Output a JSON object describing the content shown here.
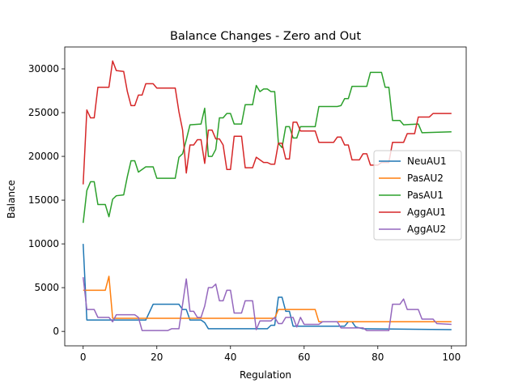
{
  "chart_data": {
    "type": "line",
    "title": "Balance Changes - Zero and Out",
    "xlabel": "Regulation",
    "ylabel": "Balance",
    "xlim": [
      -5,
      104
    ],
    "ylim": [
      -1650,
      32500
    ],
    "x_ticks": [
      0,
      20,
      40,
      60,
      80,
      100
    ],
    "y_ticks": [
      0,
      5000,
      10000,
      15000,
      20000,
      25000,
      30000
    ],
    "legend_position": "center-right",
    "grid": false,
    "series": [
      {
        "name": "NeuAU1",
        "color": "#1f77b4",
        "points": [
          [
            0,
            10000
          ],
          [
            1,
            1300
          ],
          [
            17,
            1300
          ],
          [
            19,
            3100
          ],
          [
            26,
            3100
          ],
          [
            27,
            2500
          ],
          [
            28,
            2500
          ],
          [
            29,
            1300
          ],
          [
            32,
            1300
          ],
          [
            33,
            1000
          ],
          [
            34,
            300
          ],
          [
            50,
            300
          ],
          [
            51,
            700
          ],
          [
            52,
            700
          ],
          [
            53,
            3900
          ],
          [
            54,
            3900
          ],
          [
            55,
            2300
          ],
          [
            56,
            2300
          ],
          [
            57,
            600
          ],
          [
            71,
            600
          ],
          [
            72,
            1100
          ],
          [
            73,
            1100
          ],
          [
            74,
            500
          ],
          [
            76,
            300
          ],
          [
            100,
            200
          ]
        ]
      },
      {
        "name": "PasAU2",
        "color": "#ff7f0e",
        "points": [
          [
            0,
            4700
          ],
          [
            6,
            4700
          ],
          [
            7,
            6300
          ],
          [
            8,
            1500
          ],
          [
            52,
            1500
          ],
          [
            53,
            2500
          ],
          [
            63,
            2500
          ],
          [
            64,
            1100
          ],
          [
            100,
            1100
          ]
        ]
      },
      {
        "name": "PasAU1",
        "color": "#2ca02c",
        "points": [
          [
            0,
            12400
          ],
          [
            1,
            16100
          ],
          [
            2,
            17100
          ],
          [
            3,
            17100
          ],
          [
            4,
            14500
          ],
          [
            6,
            14500
          ],
          [
            7,
            13100
          ],
          [
            8,
            15100
          ],
          [
            9,
            15500
          ],
          [
            11,
            15600
          ],
          [
            12,
            17700
          ],
          [
            13,
            19500
          ],
          [
            14,
            19500
          ],
          [
            15,
            18200
          ],
          [
            17,
            18800
          ],
          [
            19,
            18800
          ],
          [
            20,
            17500
          ],
          [
            25,
            17500
          ],
          [
            26,
            19900
          ],
          [
            27,
            20300
          ],
          [
            28,
            21900
          ],
          [
            29,
            23600
          ],
          [
            32,
            23700
          ],
          [
            33,
            25500
          ],
          [
            34,
            20000
          ],
          [
            35,
            20000
          ],
          [
            36,
            20800
          ],
          [
            37,
            24400
          ],
          [
            38,
            24400
          ],
          [
            39,
            24900
          ],
          [
            40,
            24900
          ],
          [
            41,
            23700
          ],
          [
            43,
            23700
          ],
          [
            44,
            25900
          ],
          [
            46,
            25900
          ],
          [
            47,
            28100
          ],
          [
            48,
            27400
          ],
          [
            49,
            27700
          ],
          [
            50,
            27700
          ],
          [
            51,
            27400
          ],
          [
            52,
            27400
          ],
          [
            53,
            21500
          ],
          [
            54,
            21000
          ],
          [
            55,
            23400
          ],
          [
            56,
            23400
          ],
          [
            57,
            22100
          ],
          [
            58,
            22100
          ],
          [
            59,
            23400
          ],
          [
            63,
            23400
          ],
          [
            64,
            25700
          ],
          [
            69,
            25700
          ],
          [
            70,
            25800
          ],
          [
            71,
            26600
          ],
          [
            72,
            26600
          ],
          [
            73,
            28000
          ],
          [
            77,
            28000
          ],
          [
            78,
            29600
          ],
          [
            81,
            29600
          ],
          [
            82,
            27900
          ],
          [
            83,
            27900
          ],
          [
            84,
            24100
          ],
          [
            86,
            24100
          ],
          [
            87,
            23600
          ],
          [
            91,
            23700
          ],
          [
            92,
            22700
          ],
          [
            100,
            22800
          ]
        ]
      },
      {
        "name": "AggAU1",
        "color": "#d62728",
        "points": [
          [
            0,
            16800
          ],
          [
            1,
            25300
          ],
          [
            2,
            24400
          ],
          [
            3,
            24400
          ],
          [
            4,
            27900
          ],
          [
            7,
            27900
          ],
          [
            8,
            30900
          ],
          [
            9,
            29800
          ],
          [
            11,
            29700
          ],
          [
            12,
            27400
          ],
          [
            13,
            25800
          ],
          [
            14,
            25800
          ],
          [
            15,
            27000
          ],
          [
            16,
            27000
          ],
          [
            17,
            28300
          ],
          [
            19,
            28300
          ],
          [
            20,
            27800
          ],
          [
            25,
            27800
          ],
          [
            26,
            25100
          ],
          [
            27,
            23000
          ],
          [
            28,
            18100
          ],
          [
            29,
            21300
          ],
          [
            30,
            21300
          ],
          [
            31,
            21900
          ],
          [
            32,
            21900
          ],
          [
            33,
            19200
          ],
          [
            34,
            23000
          ],
          [
            35,
            23000
          ],
          [
            36,
            22000
          ],
          [
            37,
            22000
          ],
          [
            38,
            21300
          ],
          [
            39,
            18500
          ],
          [
            40,
            18500
          ],
          [
            41,
            22300
          ],
          [
            43,
            22300
          ],
          [
            44,
            18700
          ],
          [
            46,
            18700
          ],
          [
            47,
            19900
          ],
          [
            48,
            19600
          ],
          [
            49,
            19300
          ],
          [
            50,
            19300
          ],
          [
            51,
            19100
          ],
          [
            52,
            19100
          ],
          [
            53,
            21500
          ],
          [
            54,
            21500
          ],
          [
            55,
            19700
          ],
          [
            56,
            19700
          ],
          [
            57,
            23900
          ],
          [
            58,
            23900
          ],
          [
            59,
            22900
          ],
          [
            63,
            22900
          ],
          [
            64,
            21600
          ],
          [
            68,
            21600
          ],
          [
            69,
            22200
          ],
          [
            70,
            22200
          ],
          [
            71,
            21300
          ],
          [
            72,
            21300
          ],
          [
            73,
            19600
          ],
          [
            75,
            19600
          ],
          [
            76,
            20300
          ],
          [
            77,
            20300
          ],
          [
            78,
            19000
          ],
          [
            80,
            19000
          ],
          [
            81,
            19300
          ],
          [
            83,
            19300
          ],
          [
            84,
            21600
          ],
          [
            87,
            21600
          ],
          [
            88,
            22600
          ],
          [
            90,
            22600
          ],
          [
            91,
            24500
          ],
          [
            94,
            24500
          ],
          [
            95,
            24900
          ],
          [
            100,
            24900
          ]
        ]
      },
      {
        "name": "AggAU2",
        "color": "#9467bd",
        "points": [
          [
            0,
            6200
          ],
          [
            1,
            2500
          ],
          [
            3,
            2500
          ],
          [
            4,
            1600
          ],
          [
            7,
            1600
          ],
          [
            8,
            1100
          ],
          [
            9,
            1900
          ],
          [
            14,
            1900
          ],
          [
            15,
            1600
          ],
          [
            16,
            100
          ],
          [
            23,
            100
          ],
          [
            24,
            300
          ],
          [
            26,
            300
          ],
          [
            27,
            3100
          ],
          [
            28,
            6000
          ],
          [
            29,
            2300
          ],
          [
            30,
            2300
          ],
          [
            31,
            1600
          ],
          [
            32,
            1600
          ],
          [
            33,
            2900
          ],
          [
            34,
            5000
          ],
          [
            35,
            5000
          ],
          [
            36,
            5400
          ],
          [
            37,
            3500
          ],
          [
            38,
            3500
          ],
          [
            39,
            4700
          ],
          [
            40,
            4700
          ],
          [
            41,
            2100
          ],
          [
            43,
            2100
          ],
          [
            44,
            3500
          ],
          [
            46,
            3500
          ],
          [
            47,
            200
          ],
          [
            48,
            1200
          ],
          [
            51,
            1200
          ],
          [
            52,
            1600
          ],
          [
            53,
            900
          ],
          [
            54,
            900
          ],
          [
            55,
            1600
          ],
          [
            57,
            1600
          ],
          [
            58,
            500
          ],
          [
            59,
            1600
          ],
          [
            60,
            800
          ],
          [
            64,
            800
          ],
          [
            65,
            1100
          ],
          [
            69,
            1100
          ],
          [
            70,
            400
          ],
          [
            76,
            400
          ],
          [
            77,
            100
          ],
          [
            83,
            100
          ],
          [
            84,
            3100
          ],
          [
            86,
            3100
          ],
          [
            87,
            3700
          ],
          [
            88,
            2500
          ],
          [
            91,
            2500
          ],
          [
            92,
            1400
          ],
          [
            95,
            1400
          ],
          [
            96,
            900
          ],
          [
            100,
            800
          ]
        ]
      }
    ]
  }
}
